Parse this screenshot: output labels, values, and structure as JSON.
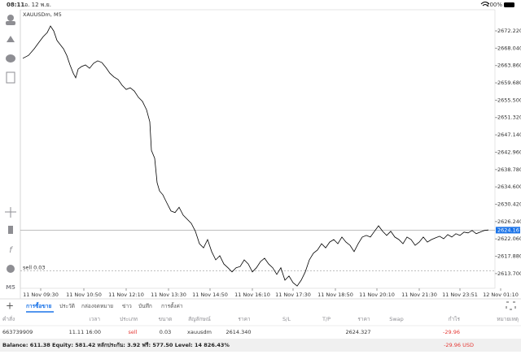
{
  "status_bar": {
    "time": "08:11",
    "date": "อ. 12 พ.ย.",
    "battery": "100%"
  },
  "timeframe": "M5",
  "chart_data": {
    "type": "line",
    "title": "XAUUSDm, M5",
    "x": [
      0,
      7,
      14,
      20,
      25,
      30,
      34,
      38,
      42,
      46,
      50,
      54,
      58,
      62,
      65,
      68,
      72,
      77,
      82,
      87,
      92,
      97,
      102,
      107,
      112,
      117,
      122,
      127,
      132,
      137,
      142,
      147,
      152,
      156,
      158,
      162,
      165,
      168,
      172,
      177,
      182,
      187,
      192,
      197,
      202,
      207,
      212,
      217,
      222,
      227,
      232,
      237,
      242,
      247,
      252,
      257,
      262,
      267,
      272,
      277,
      282,
      287,
      292,
      297,
      302,
      307,
      312,
      317,
      322,
      327,
      332,
      337,
      342,
      347,
      352,
      357,
      362,
      367,
      372,
      377,
      382,
      387,
      392,
      397,
      402,
      407,
      412,
      417,
      422,
      427,
      432,
      437,
      442,
      447,
      452,
      457,
      462,
      467,
      472,
      477,
      482,
      487,
      492,
      497,
      502,
      507,
      512,
      517,
      522,
      527,
      532,
      537,
      542,
      547,
      552,
      557,
      562,
      567,
      572
    ],
    "series": [
      {
        "color": "#000000",
        "values": [
          2665.6,
          2666.3,
          2667.9,
          2669.5,
          2670.8,
          2671.8,
          2673.4,
          2672.2,
          2669.9,
          2668.9,
          2667.9,
          2666.3,
          2664.0,
          2662.0,
          2660.9,
          2663.0,
          2663.6,
          2664.0,
          2663.2,
          2664.4,
          2665.0,
          2664.6,
          2663.4,
          2662.0,
          2661.1,
          2660.5,
          2659.1,
          2658.1,
          2658.5,
          2657.7,
          2656.2,
          2655.2,
          2653.2,
          2650.3,
          2643.4,
          2641.5,
          2635.6,
          2633.6,
          2632.7,
          2630.7,
          2628.8,
          2628.4,
          2629.7,
          2627.8,
          2626.8,
          2625.8,
          2623.9,
          2620.9,
          2619.9,
          2621.9,
          2619.0,
          2617.0,
          2618.0,
          2616.0,
          2615.1,
          2614.1,
          2615.1,
          2615.4,
          2617.0,
          2616.0,
          2614.1,
          2615.1,
          2616.6,
          2617.4,
          2616.0,
          2615.1,
          2613.5,
          2615.1,
          2612.1,
          2613.1,
          2611.5,
          2610.7,
          2612.1,
          2614.1,
          2617.0,
          2618.6,
          2619.4,
          2620.9,
          2619.9,
          2621.3,
          2621.9,
          2620.9,
          2622.5,
          2621.3,
          2620.5,
          2619.0,
          2620.9,
          2622.5,
          2622.9,
          2622.5,
          2623.9,
          2625.2,
          2623.9,
          2622.9,
          2623.9,
          2622.5,
          2621.9,
          2620.9,
          2622.5,
          2621.9,
          2620.5,
          2621.3,
          2622.5,
          2621.3,
          2621.9,
          2622.3,
          2622.7,
          2622.1,
          2623.1,
          2622.5,
          2623.3,
          2622.9,
          2623.7,
          2623.5,
          2624.1,
          2623.3,
          2623.7,
          2624.1,
          2624.2
        ]
      }
    ],
    "xlim": [
      -3,
      580
    ],
    "xticks": [
      {
        "value": 22,
        "label": "11 Nov 09:30"
      },
      {
        "value": 75,
        "label": "11 Nov 10:50"
      },
      {
        "value": 127,
        "label": "11 Nov 12:10"
      },
      {
        "value": 179,
        "label": "11 Nov 13:30"
      },
      {
        "value": 230,
        "label": "11 Nov 14:50"
      },
      {
        "value": 282,
        "label": "11 Nov 16:10"
      },
      {
        "value": 332,
        "label": "11 Nov 17:30"
      },
      {
        "value": 384,
        "label": "11 Nov 18:50"
      },
      {
        "value": 435,
        "label": "11 Nov 20:10"
      },
      {
        "value": 487,
        "label": "11 Nov 21:30"
      },
      {
        "value": 537,
        "label": "11 Nov 23:51"
      },
      {
        "value": 587,
        "label": "12 Nov 01:10"
      }
    ],
    "ylim": [
      2610.15,
      2677.31
    ],
    "yticks": [
      {
        "value": 2672.22,
        "label": "2672.220"
      },
      {
        "value": 2668.04,
        "label": "2668.040"
      },
      {
        "value": 2663.86,
        "label": "2663.860"
      },
      {
        "value": 2659.68,
        "label": "2659.680"
      },
      {
        "value": 2655.5,
        "label": "2655.500"
      },
      {
        "value": 2651.32,
        "label": "2651.320"
      },
      {
        "value": 2647.14,
        "label": "2647.140"
      },
      {
        "value": 2642.96,
        "label": "2642.960"
      },
      {
        "value": 2638.78,
        "label": "2638.780"
      },
      {
        "value": 2634.6,
        "label": "2634.600"
      },
      {
        "value": 2630.42,
        "label": "2630.420"
      },
      {
        "value": 2626.24,
        "label": "2626.240"
      },
      {
        "value": 2622.06,
        "label": "2622.060"
      },
      {
        "value": 2617.88,
        "label": "2617.880"
      },
      {
        "value": 2613.7,
        "label": "2613.700"
      }
    ],
    "current_price": 2624.167,
    "order_line": {
      "label": "sell 0.03",
      "value": 2614.34
    }
  },
  "tabs": [
    "การซื้อขาย",
    "ประวัติ",
    "กล่องจดหมาย",
    "ข่าว",
    "บันทึก",
    "การตั้งค่า"
  ],
  "table": {
    "header": [
      "คำสั่ง",
      "เวลา",
      "ประเภท",
      "ขนาด",
      "สัญลักษณ์",
      "ราคา",
      "S/L",
      "T/P",
      "ราคา",
      "Swap",
      "กำไร",
      "หมายเหตุ"
    ],
    "rows": [
      {
        "order": "663739909",
        "time": "11.11 16:00",
        "type": "sell",
        "volume": "0.03",
        "symbol": "xauusdm",
        "price": "2614.340",
        "current_price": "2624.327",
        "profit": "-29.96"
      }
    ]
  },
  "footer": {
    "summary": "Balance: 611.38 Equity: 581.42 หลักประกัน: 3.92 ฟรี: 577.50 Level: 14 826.43%",
    "profit": "-29.96 USD"
  }
}
